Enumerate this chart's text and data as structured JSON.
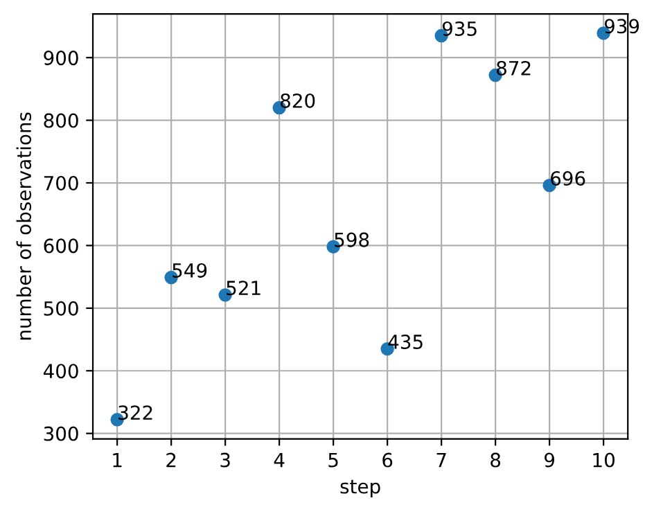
{
  "chart_data": {
    "type": "scatter",
    "xlabel": "step",
    "ylabel": "number of observations",
    "x": [
      1,
      2,
      3,
      4,
      5,
      6,
      7,
      8,
      9,
      10
    ],
    "series": [
      {
        "color": "#1f77b4",
        "values": [
          322,
          549,
          521,
          820,
          598,
          435,
          935,
          872,
          696,
          939
        ]
      }
    ],
    "data_labels": true,
    "marker": "circle",
    "grid": true,
    "xlim": [
      0.55,
      10.45
    ],
    "xticks": [
      1,
      2,
      3,
      4,
      5,
      6,
      7,
      8,
      9,
      10
    ],
    "ylim": [
      291.15,
      969.85
    ],
    "yticks": [
      300,
      400,
      500,
      600,
      700,
      800,
      900
    ]
  }
}
